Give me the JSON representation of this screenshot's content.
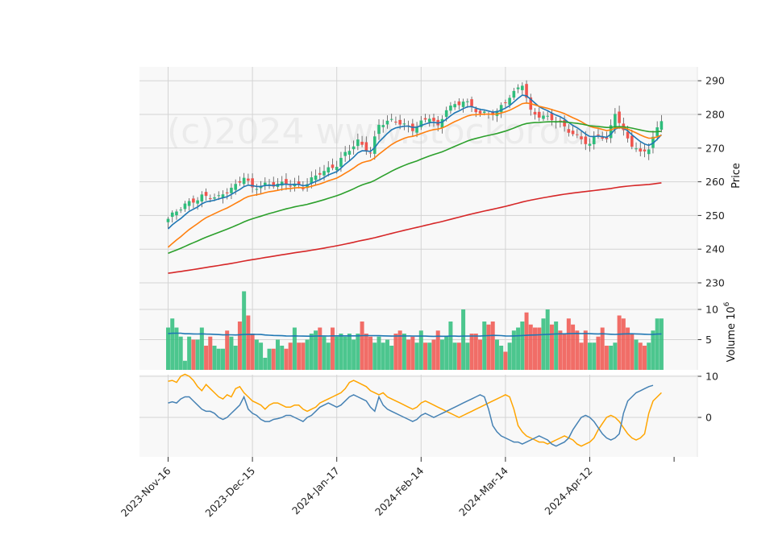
{
  "chart_data": {
    "type": "candlestick",
    "watermark": "(c)2024 www.stockorobo",
    "x_ticks": [
      "2023-Nov-16",
      "2023-Dec-15",
      "2024-Jan-17",
      "2024-Feb-14",
      "2024-Mar-14",
      "2024-Apr-12"
    ],
    "price_panel": {
      "ylabel": "Price",
      "ylim": [
        230,
        292
      ],
      "yticks": [
        230,
        240,
        250,
        260,
        270,
        280,
        290
      ],
      "close_anchors": [
        [
          0,
          249
        ],
        [
          4,
          253
        ],
        [
          8,
          256
        ],
        [
          12,
          255
        ],
        [
          16,
          259
        ],
        [
          18,
          262
        ],
        [
          20,
          258
        ],
        [
          24,
          259
        ],
        [
          28,
          260
        ],
        [
          32,
          258
        ],
        [
          36,
          263
        ],
        [
          40,
          265
        ],
        [
          42,
          268
        ],
        [
          45,
          272
        ],
        [
          48,
          269
        ],
        [
          50,
          277
        ],
        [
          54,
          278
        ],
        [
          58,
          276
        ],
        [
          62,
          279
        ],
        [
          64,
          276
        ],
        [
          66,
          282
        ],
        [
          70,
          284
        ],
        [
          74,
          280
        ],
        [
          78,
          281
        ],
        [
          80,
          284
        ],
        [
          82,
          286
        ],
        [
          84,
          289
        ],
        [
          86,
          281
        ],
        [
          88,
          280
        ],
        [
          92,
          278
        ],
        [
          94,
          276
        ],
        [
          98,
          273
        ],
        [
          100,
          271
        ],
        [
          102,
          274
        ],
        [
          104,
          272
        ],
        [
          106,
          281
        ],
        [
          108,
          275
        ],
        [
          110,
          271
        ],
        [
          112,
          268
        ],
        [
          114,
          270
        ],
        [
          116,
          276
        ],
        [
          117,
          278
        ]
      ],
      "colors": {
        "up": "#2ebd7b",
        "down": "#f0554e"
      },
      "moving_averages": [
        {
          "color": "#1f77b4",
          "start": 245.0,
          "smoothing": 0.25
        },
        {
          "color": "#ff7f0e",
          "start": 239.5,
          "smoothing": 0.11
        },
        {
          "color": "#2ca02c",
          "start": 238.3,
          "smoothing": 0.042
        },
        {
          "color": "#d62728",
          "start": 232.7,
          "smoothing": 0.0095
        }
      ]
    },
    "volume_panel": {
      "ylabel": "Volume  10^6",
      "ylim": [
        0,
        11.2
      ],
      "yticks": [
        5,
        10
      ],
      "exponent_label": "6",
      "values": [
        7,
        8.5,
        7,
        5.5,
        1.5,
        5.5,
        5,
        5,
        7,
        4,
        5.5,
        4,
        3.5,
        3.5,
        6.5,
        5.5,
        4,
        8,
        13,
        9,
        6,
        5,
        4.5,
        2,
        3.5,
        3.5,
        5,
        4,
        3.5,
        4.5,
        7,
        4.5,
        4.5,
        5,
        6,
        6.5,
        7,
        5.5,
        4.5,
        7,
        5.5,
        6,
        5.5,
        6,
        5,
        6,
        8,
        6,
        5.5,
        4.5,
        5.5,
        4.5,
        5,
        4,
        6,
        6.5,
        6,
        5,
        5.5,
        4.5,
        6.5,
        4.5,
        4.5,
        5,
        6.5,
        5,
        5.5,
        8,
        4.5,
        4.5,
        10,
        4.5,
        6,
        6,
        5,
        8,
        7.5,
        8,
        5,
        4,
        3,
        4.5,
        6.5,
        7,
        8,
        9.5,
        7.5,
        7,
        7,
        8.5,
        10,
        7.5,
        8,
        6.5,
        6,
        8.5,
        7.5,
        6.5,
        4.5,
        6.5,
        4.5,
        4.5,
        5.5,
        7,
        4,
        4,
        4.5,
        9,
        8.5,
        7,
        6,
        5,
        4.5,
        4,
        4.5,
        6.5,
        8.5,
        8.5
      ],
      "average_line": {
        "color": "#1f77b4",
        "start": 6.0,
        "smoothing": 0.06
      }
    },
    "macd_panel": {
      "yticks": [
        0,
        10
      ],
      "ylim": [
        -9.5,
        10.8
      ],
      "series": [
        {
          "color": "#ffa500",
          "values": [
            8.8,
            9,
            8.5,
            10,
            10.5,
            10,
            9,
            7.5,
            6.5,
            8,
            7,
            6,
            5,
            4.5,
            5.5,
            5,
            7,
            7.5,
            6,
            5,
            4,
            3.5,
            3,
            2,
            3,
            3.5,
            3.5,
            3,
            2.5,
            2.5,
            3,
            3,
            2,
            1.5,
            2,
            2.5,
            3.5,
            4,
            4.5,
            5,
            5.5,
            6,
            7,
            8.5,
            9,
            8.5,
            8,
            7.5,
            6.5,
            6,
            5.5,
            6,
            5,
            4.5,
            4,
            3.5,
            3,
            2.5,
            2,
            2.5,
            3.5,
            4,
            3.5,
            3,
            2.5,
            2,
            1.5,
            1,
            0.5,
            0,
            0.5,
            1,
            1.5,
            2,
            2.5,
            3,
            3.5,
            4,
            4.5,
            5,
            5.5,
            5,
            2,
            -2,
            -3.5,
            -4.5,
            -5,
            -5.5,
            -6,
            -6,
            -6.5,
            -6,
            -5.5,
            -5,
            -4.5,
            -5,
            -5.5,
            -6.5,
            -7,
            -6.5,
            -6,
            -5,
            -3,
            -1.5,
            0,
            0.5,
            0,
            -1,
            -2.5,
            -4,
            -5,
            -5.5,
            -5,
            -4,
            1,
            4,
            5,
            6
          ]
        },
        {
          "color": "#4682b4",
          "values": [
            3.5,
            3.8,
            3.5,
            4.5,
            5,
            5,
            4,
            3,
            2,
            1.5,
            1.5,
            1,
            0,
            -0.5,
            0,
            1,
            2,
            3,
            5,
            2,
            1,
            0.5,
            -0.5,
            -1,
            -1,
            -0.5,
            -0.3,
            0,
            0.5,
            0.5,
            0,
            -0.5,
            -1,
            0,
            0.5,
            1.5,
            2.5,
            3,
            3.5,
            3,
            2.5,
            3,
            4,
            5,
            5.5,
            5,
            4.5,
            4,
            2.5,
            1.5,
            5,
            3,
            2,
            1.5,
            1,
            0.5,
            0,
            -0.5,
            -1,
            -0.5,
            0.5,
            1,
            0.5,
            0,
            0.5,
            1,
            1.5,
            2,
            2.5,
            3,
            3.5,
            4,
            4.5,
            5,
            5.5,
            5,
            2,
            -2,
            -3.5,
            -4.5,
            -5,
            -5.5,
            -6,
            -6,
            -6.5,
            -6,
            -5.5,
            -5,
            -4.5,
            -5,
            -5.5,
            -6.5,
            -7,
            -6.5,
            -6,
            -5,
            -3,
            -1.5,
            0,
            0.5,
            0,
            -1,
            -2.5,
            -4,
            -5,
            -5.5,
            -5,
            -4,
            1,
            4,
            5,
            6,
            6.5,
            7,
            7.5,
            7.8
          ]
        }
      ]
    }
  }
}
